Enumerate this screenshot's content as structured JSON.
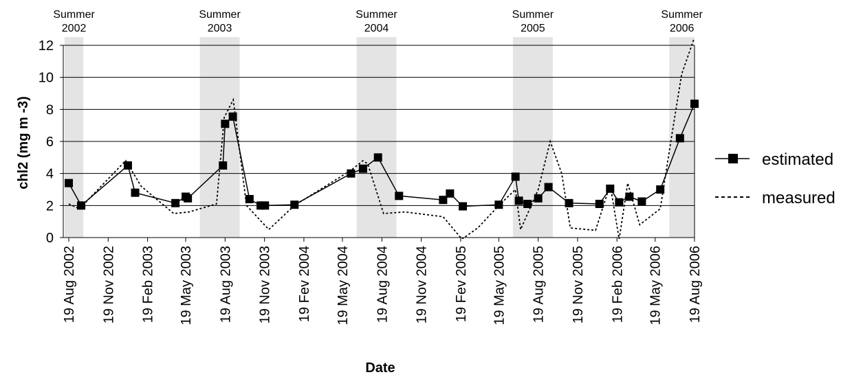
{
  "chart_data": {
    "type": "line",
    "xlabel": "Date",
    "ylabel": "chl2 (mg m -3)",
    "ylim": [
      0,
      12
    ],
    "y_ticks": [
      "0",
      "2",
      "4",
      "6",
      "8",
      "10",
      "12"
    ],
    "x_ticks": [
      {
        "date": "2002-08-19",
        "label": "19 Aug 2002"
      },
      {
        "date": "2002-11-19",
        "label": "19 Nov 2002"
      },
      {
        "date": "2003-02-19",
        "label": "19 Feb 2003"
      },
      {
        "date": "2003-05-19",
        "label": "19 May 2003"
      },
      {
        "date": "2003-08-19",
        "label": "19 Aug 2003"
      },
      {
        "date": "2003-11-19",
        "label": "19 Nov 2003"
      },
      {
        "date": "2004-02-19",
        "label": "19 Fev 2004"
      },
      {
        "date": "2004-05-19",
        "label": "19 May 2004"
      },
      {
        "date": "2004-08-19",
        "label": "19 Aug 2004"
      },
      {
        "date": "2004-11-19",
        "label": "19 Nov 2004"
      },
      {
        "date": "2005-02-19",
        "label": "19 Fev 2005"
      },
      {
        "date": "2005-05-19",
        "label": "19 May 2005"
      },
      {
        "date": "2005-08-19",
        "label": "19 Aug 2005"
      },
      {
        "date": "2005-11-19",
        "label": "19 Nov 2005"
      },
      {
        "date": "2006-02-19",
        "label": "19 Feb 2006"
      },
      {
        "date": "2006-05-19",
        "label": "19 May 2006"
      },
      {
        "date": "2006-08-19",
        "label": "19 Aug 2006"
      }
    ],
    "x_range": [
      "2002-08-19",
      "2006-08-19"
    ],
    "grid": "horizontal",
    "legend_position": "right",
    "summer_periods": [
      {
        "label_line1": "Summer",
        "label_line2": "2002",
        "start": "2002-08-19",
        "end": "2002-09-22"
      },
      {
        "label_line1": "Summer",
        "label_line2": "2003",
        "start": "2003-06-21",
        "end": "2003-09-22"
      },
      {
        "label_line1": "Summer",
        "label_line2": "2004",
        "start": "2004-06-21",
        "end": "2004-09-22"
      },
      {
        "label_line1": "Summer",
        "label_line2": "2005",
        "start": "2005-06-21",
        "end": "2005-09-22"
      },
      {
        "label_line1": "Summer",
        "label_line2": "2006",
        "start": "2006-06-21",
        "end": "2006-08-19"
      }
    ],
    "series": [
      {
        "name": "estimated",
        "style": "solid-square-markers",
        "color": "#000000",
        "points": [
          {
            "x": "2002-08-19",
            "y": 3.4
          },
          {
            "x": "2002-09-17",
            "y": 2.0
          },
          {
            "x": "2003-01-04",
            "y": 4.5
          },
          {
            "x": "2003-01-21",
            "y": 2.8
          },
          {
            "x": "2003-04-25",
            "y": 2.15
          },
          {
            "x": "2003-05-19",
            "y": 2.55
          },
          {
            "x": "2003-05-24",
            "y": 2.45
          },
          {
            "x": "2003-08-14",
            "y": 4.5
          },
          {
            "x": "2003-08-19",
            "y": 7.1
          },
          {
            "x": "2003-09-06",
            "y": 7.55
          },
          {
            "x": "2003-10-15",
            "y": 2.4
          },
          {
            "x": "2003-11-10",
            "y": 2.0
          },
          {
            "x": "2003-11-20",
            "y": 2.0
          },
          {
            "x": "2004-01-28",
            "y": 2.05
          },
          {
            "x": "2004-06-08",
            "y": 4.0
          },
          {
            "x": "2004-07-06",
            "y": 4.3
          },
          {
            "x": "2004-08-10",
            "y": 5.0
          },
          {
            "x": "2004-09-28",
            "y": 2.6
          },
          {
            "x": "2005-01-09",
            "y": 2.35
          },
          {
            "x": "2005-01-25",
            "y": 2.75
          },
          {
            "x": "2005-02-24",
            "y": 1.95
          },
          {
            "x": "2005-05-19",
            "y": 2.05
          },
          {
            "x": "2005-06-27",
            "y": 3.8
          },
          {
            "x": "2005-07-05",
            "y": 2.3
          },
          {
            "x": "2005-07-25",
            "y": 2.1
          },
          {
            "x": "2005-08-19",
            "y": 2.45
          },
          {
            "x": "2005-09-12",
            "y": 3.15
          },
          {
            "x": "2005-10-30",
            "y": 2.15
          },
          {
            "x": "2006-01-09",
            "y": 2.1
          },
          {
            "x": "2006-02-03",
            "y": 3.05
          },
          {
            "x": "2006-02-24",
            "y": 2.2
          },
          {
            "x": "2006-03-20",
            "y": 2.55
          },
          {
            "x": "2006-04-18",
            "y": 2.25
          },
          {
            "x": "2006-05-31",
            "y": 3.0
          },
          {
            "x": "2006-07-16",
            "y": 6.2
          },
          {
            "x": "2006-08-19",
            "y": 8.35
          }
        ]
      },
      {
        "name": "measured",
        "style": "dashed",
        "color": "#000000",
        "points": [
          {
            "x": "2002-08-19",
            "y": 2.1
          },
          {
            "x": "2002-09-13",
            "y": 1.8
          },
          {
            "x": "2002-12-30",
            "y": 4.8
          },
          {
            "x": "2003-02-04",
            "y": 3.2
          },
          {
            "x": "2003-04-21",
            "y": 1.5
          },
          {
            "x": "2003-05-27",
            "y": 1.6
          },
          {
            "x": "2003-07-30",
            "y": 2.1
          },
          {
            "x": "2003-08-17",
            "y": 7.5
          },
          {
            "x": "2003-09-07",
            "y": 8.6
          },
          {
            "x": "2003-10-08",
            "y": 2.0
          },
          {
            "x": "2003-11-29",
            "y": 0.5
          },
          {
            "x": "2004-01-28",
            "y": 2.0
          },
          {
            "x": "2004-06-08",
            "y": 4.2
          },
          {
            "x": "2004-07-06",
            "y": 4.8
          },
          {
            "x": "2004-07-17",
            "y": 4.6
          },
          {
            "x": "2004-08-23",
            "y": 1.5
          },
          {
            "x": "2004-10-12",
            "y": 1.6
          },
          {
            "x": "2005-01-09",
            "y": 1.3
          },
          {
            "x": "2005-02-22",
            "y": -0.1
          },
          {
            "x": "2005-03-31",
            "y": 0.6
          },
          {
            "x": "2005-05-19",
            "y": 2.0
          },
          {
            "x": "2005-06-27",
            "y": 3.0
          },
          {
            "x": "2005-07-09",
            "y": 0.5
          },
          {
            "x": "2005-08-19",
            "y": 3.0
          },
          {
            "x": "2005-09-16",
            "y": 6.0
          },
          {
            "x": "2005-10-13",
            "y": 4.0
          },
          {
            "x": "2005-11-02",
            "y": 0.6
          },
          {
            "x": "2005-12-31",
            "y": 0.45
          },
          {
            "x": "2006-02-03",
            "y": 3.3
          },
          {
            "x": "2006-02-24",
            "y": -0.1
          },
          {
            "x": "2006-03-16",
            "y": 3.4
          },
          {
            "x": "2006-04-13",
            "y": 0.8
          },
          {
            "x": "2006-05-31",
            "y": 1.8
          },
          {
            "x": "2006-06-27",
            "y": 6.4
          },
          {
            "x": "2006-07-20",
            "y": 10.2
          },
          {
            "x": "2006-08-19",
            "y": 12.5
          }
        ]
      }
    ]
  }
}
